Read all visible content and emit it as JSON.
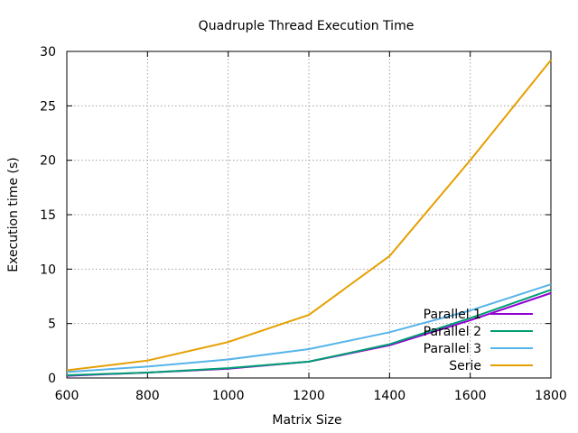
{
  "chart_data": {
    "type": "line",
    "title": "Quadruple Thread Execution Time",
    "xlabel": "Matrix Size",
    "ylabel": "Execution time (s)",
    "x": [
      600,
      800,
      1000,
      1200,
      1400,
      1600,
      1800
    ],
    "xlim": [
      600,
      1800
    ],
    "ylim": [
      0,
      30
    ],
    "xticks": [
      600,
      800,
      1000,
      1200,
      1400,
      1600,
      1800
    ],
    "yticks": [
      0,
      5,
      10,
      15,
      20,
      25,
      30
    ],
    "grid": true,
    "legend_position": "bottom-right",
    "series": [
      {
        "name": "Parallel 1",
        "color": "#9400d3",
        "values": [
          0.2,
          0.5,
          0.85,
          1.5,
          3.0,
          5.3,
          7.8
        ]
      },
      {
        "name": "Parallel 2",
        "color": "#009e73",
        "values": [
          0.25,
          0.5,
          0.9,
          1.5,
          3.1,
          5.5,
          8.1
        ]
      },
      {
        "name": "Parallel 3",
        "color": "#56b4e9",
        "values": [
          0.55,
          1.05,
          1.7,
          2.65,
          4.2,
          6.2,
          8.6
        ]
      },
      {
        "name": "Serie",
        "color": "#e69f00",
        "values": [
          0.7,
          1.6,
          3.3,
          5.8,
          11.2,
          20.0,
          29.2
        ]
      }
    ]
  }
}
